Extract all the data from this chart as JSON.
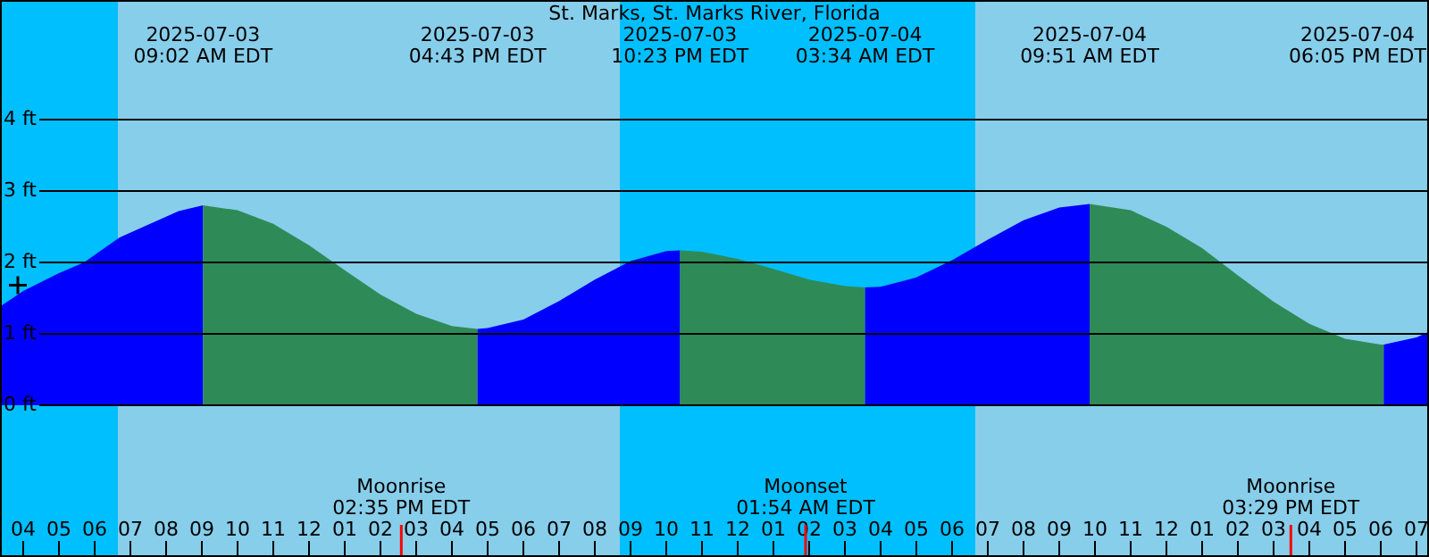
{
  "chart_data": {
    "type": "area",
    "title": "St. Marks, St. Marks River, Florida",
    "xlim": [
      "2025-07-03T03:21",
      "2025-07-04T19:21"
    ],
    "ylim": [
      -2.125,
      5.675
    ],
    "yticks": [
      {
        "value": 0,
        "label": "0 ft"
      },
      {
        "value": 1,
        "label": "1 ft"
      },
      {
        "value": 2,
        "label": "2 ft"
      },
      {
        "value": 3,
        "label": "3 ft"
      },
      {
        "value": 4,
        "label": "4 ft"
      }
    ],
    "xticks": [
      {
        "value": "2025-07-03T04:00",
        "label": "04"
      },
      {
        "value": "2025-07-03T05:00",
        "label": "05"
      },
      {
        "value": "2025-07-03T06:00",
        "label": "06"
      },
      {
        "value": "2025-07-03T07:00",
        "label": "07"
      },
      {
        "value": "2025-07-03T08:00",
        "label": "08"
      },
      {
        "value": "2025-07-03T09:00",
        "label": "09"
      },
      {
        "value": "2025-07-03T10:00",
        "label": "10"
      },
      {
        "value": "2025-07-03T11:00",
        "label": "11"
      },
      {
        "value": "2025-07-03T12:00",
        "label": "12"
      },
      {
        "value": "2025-07-03T13:00",
        "label": "01"
      },
      {
        "value": "2025-07-03T14:00",
        "label": "02"
      },
      {
        "value": "2025-07-03T15:00",
        "label": "03"
      },
      {
        "value": "2025-07-03T16:00",
        "label": "04"
      },
      {
        "value": "2025-07-03T17:00",
        "label": "05"
      },
      {
        "value": "2025-07-03T18:00",
        "label": "06"
      },
      {
        "value": "2025-07-03T19:00",
        "label": "07"
      },
      {
        "value": "2025-07-03T20:00",
        "label": "08"
      },
      {
        "value": "2025-07-03T21:00",
        "label": "09"
      },
      {
        "value": "2025-07-03T22:00",
        "label": "10"
      },
      {
        "value": "2025-07-03T23:00",
        "label": "11"
      },
      {
        "value": "2025-07-04T00:00",
        "label": "12"
      },
      {
        "value": "2025-07-04T01:00",
        "label": "01"
      },
      {
        "value": "2025-07-04T02:00",
        "label": "02"
      },
      {
        "value": "2025-07-04T03:00",
        "label": "03"
      },
      {
        "value": "2025-07-04T04:00",
        "label": "04"
      },
      {
        "value": "2025-07-04T05:00",
        "label": "05"
      },
      {
        "value": "2025-07-04T06:00",
        "label": "06"
      },
      {
        "value": "2025-07-04T07:00",
        "label": "07"
      },
      {
        "value": "2025-07-04T08:00",
        "label": "08"
      },
      {
        "value": "2025-07-04T09:00",
        "label": "09"
      },
      {
        "value": "2025-07-04T10:00",
        "label": "10"
      },
      {
        "value": "2025-07-04T11:00",
        "label": "11"
      },
      {
        "value": "2025-07-04T12:00",
        "label": "12"
      },
      {
        "value": "2025-07-04T13:00",
        "label": "01"
      },
      {
        "value": "2025-07-04T14:00",
        "label": "02"
      },
      {
        "value": "2025-07-04T15:00",
        "label": "03"
      },
      {
        "value": "2025-07-04T16:00",
        "label": "04"
      },
      {
        "value": "2025-07-04T17:00",
        "label": "05"
      },
      {
        "value": "2025-07-04T18:00",
        "label": "06"
      },
      {
        "value": "2025-07-04T19:00",
        "label": "07"
      }
    ],
    "grid": "y",
    "bands": [
      {
        "axis": "x",
        "from": "2025-07-03T03:21",
        "to": "2025-07-03T06:39",
        "color": "#00bfff"
      },
      {
        "axis": "x",
        "from": "2025-07-03T06:39",
        "to": "2025-07-03T20:42",
        "color": "#87ceeb"
      },
      {
        "axis": "x",
        "from": "2025-07-03T20:42",
        "to": "2025-07-04T06:39",
        "color": "#00bfff"
      },
      {
        "axis": "x",
        "from": "2025-07-04T06:39",
        "to": "2025-07-04T19:21",
        "color": "#87ceeb"
      }
    ],
    "ref_lines": [
      {
        "axis": "x",
        "value": "2025-07-03T14:35",
        "label": "Moonrise\n02:35 PM EDT",
        "color": "#ff0000"
      },
      {
        "axis": "x",
        "value": "2025-07-04T01:54",
        "label": "Moonset\n01:54 AM EDT",
        "color": "#ff0000"
      },
      {
        "axis": "x",
        "value": "2025-07-04T15:29",
        "label": "Moonrise\n03:29 PM EDT",
        "color": "#ff0000"
      }
    ],
    "series": [
      {
        "color": "#0000ff",
        "x": [
          "2025-07-03T03:21",
          "2025-07-03T04:00",
          "2025-07-03T05:00",
          "2025-07-03T05:42",
          "2025-07-03T06:42",
          "2025-07-03T08:21",
          "2025-07-03T09:02"
        ],
        "values": [
          1.38,
          1.6,
          1.85,
          2.0,
          2.35,
          2.72,
          2.8
        ]
      },
      {
        "color": "#2e8b57",
        "x": [
          "2025-07-03T09:02",
          "2025-07-03T10:00",
          "2025-07-03T11:00",
          "2025-07-03T12:00",
          "2025-07-03T13:00",
          "2025-07-03T14:00",
          "2025-07-03T15:00",
          "2025-07-03T16:00",
          "2025-07-03T16:43"
        ],
        "values": [
          2.8,
          2.73,
          2.54,
          2.24,
          1.89,
          1.55,
          1.28,
          1.11,
          1.07
        ]
      },
      {
        "color": "#0000ff",
        "x": [
          "2025-07-03T16:43",
          "2025-07-03T17:00",
          "2025-07-03T18:00",
          "2025-07-03T19:00",
          "2025-07-03T20:00",
          "2025-07-03T21:00",
          "2025-07-03T22:00",
          "2025-07-03T22:23"
        ],
        "values": [
          1.07,
          1.08,
          1.2,
          1.46,
          1.76,
          2.02,
          2.16,
          2.17
        ]
      },
      {
        "color": "#2e8b57",
        "x": [
          "2025-07-03T22:23",
          "2025-07-03T23:00",
          "2025-07-04T00:00",
          "2025-07-04T01:00",
          "2025-07-04T02:00",
          "2025-07-04T03:00",
          "2025-07-04T03:34"
        ],
        "values": [
          2.17,
          2.15,
          2.05,
          1.91,
          1.76,
          1.67,
          1.65
        ]
      },
      {
        "color": "#0000ff",
        "x": [
          "2025-07-04T03:34",
          "2025-07-04T04:00",
          "2025-07-04T05:00",
          "2025-07-04T06:00",
          "2025-07-04T07:00",
          "2025-07-04T08:00",
          "2025-07-04T09:00",
          "2025-07-04T09:51"
        ],
        "values": [
          1.65,
          1.66,
          1.79,
          2.03,
          2.32,
          2.59,
          2.77,
          2.82
        ]
      },
      {
        "color": "#2e8b57",
        "x": [
          "2025-07-04T09:51",
          "2025-07-04T11:00",
          "2025-07-04T12:00",
          "2025-07-04T13:00",
          "2025-07-04T14:00",
          "2025-07-04T15:00",
          "2025-07-04T16:00",
          "2025-07-04T17:00",
          "2025-07-04T18:00",
          "2025-07-04T18:05"
        ],
        "values": [
          2.82,
          2.73,
          2.5,
          2.2,
          1.82,
          1.45,
          1.14,
          0.93,
          0.85,
          0.85
        ]
      },
      {
        "color": "#0000ff",
        "x": [
          "2025-07-04T18:05",
          "2025-07-04T19:00",
          "2025-07-04T19:21"
        ],
        "values": [
          0.85,
          0.95,
          1.03
        ]
      },
      {
        "type": "scatter",
        "color": "#000000",
        "marker": "cross",
        "x": [
          "2025-07-03T03:51"
        ],
        "values": [
          1.68
        ]
      }
    ],
    "x2lim": [
      "2025-07-03T03:21",
      "2025-07-04T19:21"
    ],
    "x2ticks": [
      {
        "value": "2025-07-03T09:02",
        "label": "2025-07-03\n09:02 AM EDT"
      },
      {
        "value": "2025-07-03T16:43",
        "label": "2025-07-03\n04:43 PM EDT"
      },
      {
        "value": "2025-07-03T22:23",
        "label": "2025-07-03\n10:23 PM EDT"
      },
      {
        "value": "2025-07-04T03:34",
        "label": "2025-07-04\n03:34 AM EDT"
      },
      {
        "value": "2025-07-04T09:51",
        "label": "2025-07-04\n09:51 AM EDT"
      }
    ],
    "annotations": [
      "2025-07-04\n06:05 PM EDT"
    ]
  }
}
